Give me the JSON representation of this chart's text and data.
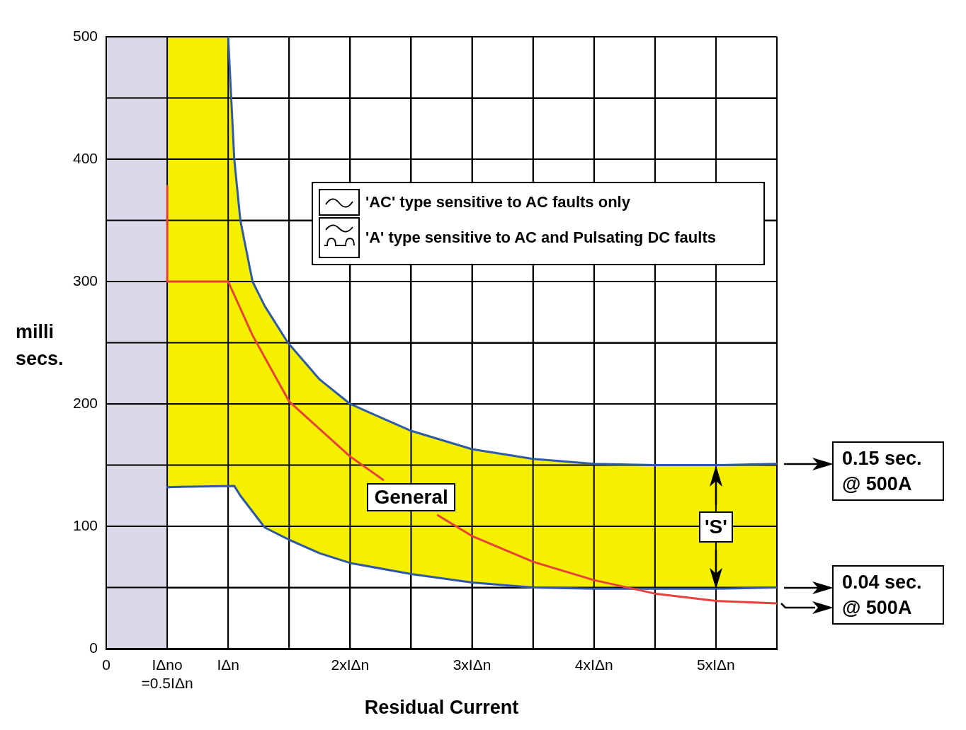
{
  "chart_data": {
    "type": "line",
    "xlabel": "Residual Current",
    "ylabel": "milli secs.",
    "xlim": [
      0,
      5.5
    ],
    "ylim": [
      0,
      500
    ],
    "xticks": [
      0,
      {
        "value": 0.5,
        "label": "IΔno =0.5IΔn"
      },
      {
        "value": 1,
        "label": "IΔn"
      },
      {
        "value": 1.5,
        "label": null
      },
      {
        "value": 2,
        "label": "2xIΔn"
      },
      {
        "value": 2.5,
        "label": null
      },
      {
        "value": 3,
        "label": "3xIΔn"
      },
      {
        "value": 3.5,
        "label": null
      },
      {
        "value": 4,
        "label": "4xIΔn"
      },
      {
        "value": 4.5,
        "label": null
      },
      {
        "value": 5,
        "label": "5xIΔn"
      },
      {
        "value": 5.5,
        "label": null
      }
    ],
    "yticks": [
      0,
      {
        "value": 50,
        "label": null
      },
      100,
      {
        "value": 150,
        "label": null
      },
      200,
      {
        "value": 250,
        "label": null
      },
      300,
      {
        "value": 350,
        "label": null
      },
      400,
      {
        "value": 450,
        "label": null
      },
      500
    ],
    "grid": true,
    "bands": [
      {
        "axis": "x",
        "from": 0,
        "to": 0.5,
        "color": "#d9d9ea"
      }
    ],
    "series": [
      {
        "color": "#2f5aa8",
        "x": [
          1,
          1.05,
          1.1,
          1.2,
          1.3,
          1.49,
          1.75,
          2,
          2.5,
          3,
          3.5,
          4,
          4.5,
          5,
          5.5
        ],
        "values": [
          500,
          400,
          350,
          300,
          280,
          250,
          220,
          200,
          178,
          163,
          155,
          151,
          150,
          150,
          151
        ]
      },
      {
        "name": "General",
        "color": "#e8413c",
        "x": [
          0.5,
          0.5,
          1,
          1.2,
          1.5,
          2,
          2.27,
          2.5,
          2.72,
          3,
          3.5,
          4,
          4.5,
          5,
          5.5
        ],
        "values": [
          378,
          300,
          300,
          256,
          202,
          157,
          138,
          null,
          109,
          92,
          71,
          56,
          45,
          39,
          37
        ]
      },
      {
        "color": "#2e58a6",
        "x": [
          0.5,
          1.05,
          1.1,
          1.2,
          1.3,
          1.5,
          1.75,
          2,
          2.5,
          3,
          3.5,
          4,
          4.5,
          5,
          5.5
        ],
        "values": [
          132,
          133,
          125,
          112,
          99,
          89,
          78,
          70,
          61,
          54,
          50,
          49,
          49,
          49,
          50
        ]
      },
      {
        "type": "area",
        "color": "#f5ef00",
        "x": [
          0.5,
          1,
          1.05,
          1.1,
          1.2,
          1.3,
          1.5,
          1.75,
          2,
          2.5,
          3,
          3.5,
          4,
          4.5,
          5,
          5.5
        ],
        "values": [
          500,
          500,
          400,
          350,
          300,
          280,
          248,
          220,
          200,
          178,
          163,
          155,
          151,
          150,
          150,
          151
        ]
      }
    ],
    "annotations": [
      "'AC' type sensitive to AC faults only",
      "'A' type sensitive to AC and Pulsating DC faults",
      "'S'",
      "0.15 sec. @ 500A",
      "0.04 sec. @ 500A"
    ]
  }
}
